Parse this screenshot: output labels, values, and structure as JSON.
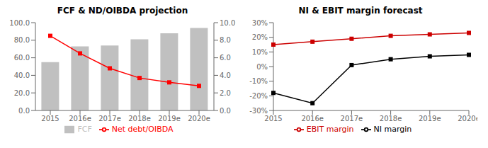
{
  "chart_data": [
    {
      "type": "bar",
      "title": "FCF & ND/OIBDA projection",
      "categories": [
        "2015",
        "2016e",
        "2017e",
        "2018e",
        "2019e",
        "2020e"
      ],
      "series": [
        {
          "name": "FCF",
          "type": "bar",
          "color": "#c0c0c0",
          "values": [
            55,
            73,
            74,
            81,
            88,
            94
          ]
        },
        {
          "name": "Net debt/OIBDA",
          "type": "line",
          "color": "#ff0000",
          "marker": "square",
          "axis": "y2",
          "values": [
            8.5,
            6.5,
            4.8,
            3.7,
            3.2,
            2.8
          ]
        }
      ],
      "ylim": [
        0,
        100
      ],
      "yticks": [
        {
          "value": 0,
          "label": "0.0"
        },
        {
          "value": 20,
          "label": "20.0"
        },
        {
          "value": 40,
          "label": "40.0"
        },
        {
          "value": 60,
          "label": "60.0"
        },
        {
          "value": 80,
          "label": "80.0"
        },
        {
          "value": 100,
          "label": "100.0"
        }
      ],
      "y2lim": [
        0,
        10
      ],
      "y2ticks": [
        {
          "value": 0,
          "label": "0.0"
        },
        {
          "value": 2,
          "label": "2.0"
        },
        {
          "value": 4,
          "label": "4.0"
        },
        {
          "value": 6,
          "label": "6.0"
        },
        {
          "value": 8,
          "label": "8.0"
        },
        {
          "value": 10,
          "label": "10.0"
        }
      ],
      "grid": false,
      "legend": "bottom"
    },
    {
      "type": "line",
      "title": "NI & EBIT margin forecast",
      "categories": [
        "2015",
        "2016e",
        "2017e",
        "2018e",
        "2019e",
        "2020e"
      ],
      "series": [
        {
          "name": "NI margin",
          "color": "#000000",
          "marker": "square",
          "values": [
            -18,
            -25,
            1,
            5,
            7,
            8
          ]
        },
        {
          "name": "EBIT margin",
          "color": "#cc0000",
          "marker": "square",
          "values": [
            15,
            17,
            19,
            21,
            22,
            23
          ]
        }
      ],
      "ylim": [
        -30,
        30
      ],
      "yticks": [
        {
          "value": -30,
          "label": "-30%"
        },
        {
          "value": -20,
          "label": "-20%"
        },
        {
          "value": -10,
          "label": "-10%"
        },
        {
          "value": 0,
          "label": "0%"
        },
        {
          "value": 10,
          "label": "10%"
        },
        {
          "value": 20,
          "label": "20%"
        },
        {
          "value": 30,
          "label": "30%"
        }
      ],
      "grid": false,
      "legend": "bottom"
    }
  ]
}
